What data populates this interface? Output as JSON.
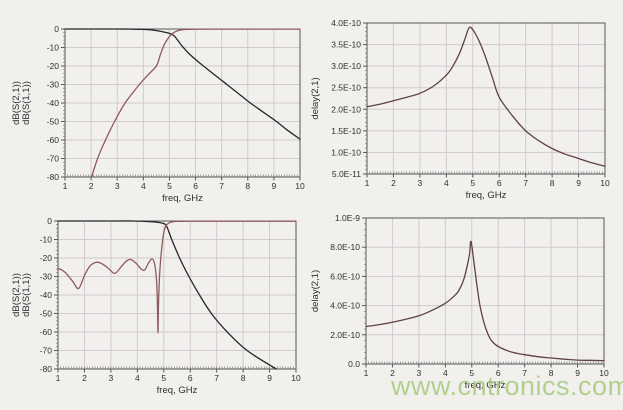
{
  "page": {
    "background": "#f2f0ec",
    "watermark": {
      "text": "www.cntronics.com",
      "color": "#a6cb7f"
    }
  },
  "chart_data": [
    {
      "type": "line",
      "position": "top-left",
      "title": "",
      "xlabel": "freq, GHz",
      "ylabel": [
        {
          "text": "dB(S(2,1))",
          "color": "#3c3c8a"
        },
        {
          "text": "dB(S(1,1))",
          "color": "#a8484a"
        }
      ],
      "xlim": [
        1,
        10
      ],
      "ylim": [
        -80,
        0
      ],
      "grid": true,
      "xtick_values": [
        1,
        2,
        3,
        4,
        5,
        6,
        7,
        8,
        9,
        10
      ],
      "xtick_labels": [
        "1",
        "2",
        "3",
        "4",
        "5",
        "6",
        "7",
        "8",
        "9",
        "10"
      ],
      "ytick_values": [
        0,
        -10,
        -20,
        -30,
        -40,
        -50,
        -60,
        -70,
        -80
      ],
      "ytick_labels": [
        "0",
        "-10",
        "-20",
        "-30",
        "-40",
        "-50",
        "-60",
        "-70",
        "-80"
      ],
      "series": [
        {
          "name": "dB(S(2,1))",
          "color": "#26262e",
          "points": [
            [
              1,
              0
            ],
            [
              1.5,
              0
            ],
            [
              2,
              0
            ],
            [
              2.5,
              0
            ],
            [
              3,
              0
            ],
            [
              3.5,
              -0.05
            ],
            [
              4,
              -0.2
            ],
            [
              4.3,
              -0.5
            ],
            [
              4.6,
              -1.1
            ],
            [
              4.8,
              -1.7
            ],
            [
              5,
              -2.4
            ],
            [
              5.2,
              -4
            ],
            [
              5.5,
              -9.5
            ],
            [
              5.8,
              -14
            ],
            [
              6.3,
              -20
            ],
            [
              6.8,
              -25.5
            ],
            [
              7.2,
              -30
            ],
            [
              7.7,
              -35.5
            ],
            [
              8.1,
              -40
            ],
            [
              8.6,
              -45
            ],
            [
              9.1,
              -50
            ],
            [
              9.5,
              -54.5
            ],
            [
              10,
              -59.5
            ]
          ]
        },
        {
          "name": "dB(S(1,1))",
          "color": "#8e5a5e",
          "points": [
            [
              2.02,
              -80
            ],
            [
              2.25,
              -70
            ],
            [
              2.55,
              -60
            ],
            [
              2.9,
              -50
            ],
            [
              3.3,
              -40
            ],
            [
              3.85,
              -30
            ],
            [
              4.2,
              -24.5
            ],
            [
              4.5,
              -20
            ],
            [
              4.65,
              -14
            ],
            [
              4.8,
              -8.5
            ],
            [
              4.95,
              -5
            ],
            [
              5.05,
              -3.2
            ],
            [
              5.2,
              -1.6
            ],
            [
              5.4,
              -0.6
            ],
            [
              5.6,
              -0.25
            ],
            [
              6,
              -0.1
            ],
            [
              7,
              -0.08
            ],
            [
              8,
              -0.08
            ],
            [
              9,
              -0.08
            ],
            [
              10,
              -0.08
            ]
          ]
        }
      ]
    },
    {
      "type": "line",
      "position": "top-right",
      "title": "",
      "xlabel": "freq, GHz",
      "ylabel": [
        {
          "text": "delay(2,1)",
          "color": "#a8484a"
        }
      ],
      "xlim": [
        1,
        10
      ],
      "ylim": [
        5e-11,
        4e-10
      ],
      "grid": true,
      "xtick_values": [
        1,
        2,
        3,
        4,
        5,
        6,
        7,
        8,
        9,
        10
      ],
      "xtick_labels": [
        "1",
        "2",
        "3",
        "4",
        "5",
        "6",
        "7",
        "8",
        "9",
        "10"
      ],
      "ytick_values": [
        4e-10,
        3.5e-10,
        3e-10,
        2.5e-10,
        2e-10,
        1.5e-10,
        1e-10,
        5e-11
      ],
      "ytick_labels": [
        "4.0E-10",
        "3.5E-10",
        "3.0E-10",
        "2.5E-10",
        "2.0E-10",
        "1.5E-10",
        "1.0E-10",
        "5.0E-11"
      ],
      "series": [
        {
          "name": "delay(2,1)",
          "color": "#5f4148",
          "points": [
            [
              1,
              2.06e-10
            ],
            [
              1.5,
              2.12e-10
            ],
            [
              2,
              2.2e-10
            ],
            [
              2.5,
              2.28e-10
            ],
            [
              3,
              2.37e-10
            ],
            [
              3.5,
              2.53e-10
            ],
            [
              4,
              2.79e-10
            ],
            [
              4.25,
              3e-10
            ],
            [
              4.5,
              3.3e-10
            ],
            [
              4.7,
              3.62e-10
            ],
            [
              4.88,
              3.9e-10
            ],
            [
              5.1,
              3.75e-10
            ],
            [
              5.3,
              3.5e-10
            ],
            [
              5.5,
              3.18e-10
            ],
            [
              5.75,
              2.72e-10
            ],
            [
              6,
              2.28e-10
            ],
            [
              6.5,
              1.85e-10
            ],
            [
              7,
              1.5e-10
            ],
            [
              7.5,
              1.27e-10
            ],
            [
              8,
              1.09e-10
            ],
            [
              8.5,
              9.6e-11
            ],
            [
              9,
              8.6e-11
            ],
            [
              9.5,
              7.6e-11
            ],
            [
              10,
              6.8e-11
            ]
          ]
        }
      ]
    },
    {
      "type": "line",
      "position": "bottom-left",
      "title": "",
      "xlabel": "freq, GHz",
      "ylabel": [
        {
          "text": "dB(S(2,1))",
          "color": "#3c3c8a"
        },
        {
          "text": "dB(S(1,1))",
          "color": "#a8484a"
        }
      ],
      "xlim": [
        1,
        10
      ],
      "ylim": [
        -80,
        0
      ],
      "grid": true,
      "xtick_values": [
        1,
        2,
        3,
        4,
        5,
        6,
        7,
        8,
        9,
        10
      ],
      "xtick_labels": [
        "1",
        "2",
        "3",
        "4",
        "5",
        "6",
        "7",
        "8",
        "9",
        "10"
      ],
      "ytick_values": [
        0,
        -10,
        -20,
        -30,
        -40,
        -50,
        -60,
        -70,
        -80
      ],
      "ytick_labels": [
        "0",
        "-10",
        "-20",
        "-30",
        "-40",
        "-50",
        "-60",
        "-70",
        "-80"
      ],
      "series": [
        {
          "name": "dB(S(2,1))",
          "color": "#26262e",
          "points": [
            [
              1,
              0
            ],
            [
              2,
              0
            ],
            [
              3,
              0
            ],
            [
              3.8,
              0
            ],
            [
              4.3,
              -0.2
            ],
            [
              4.7,
              -0.6
            ],
            [
              4.95,
              -1.2
            ],
            [
              5.1,
              -2.6
            ],
            [
              5.3,
              -10
            ],
            [
              5.6,
              -20
            ],
            [
              5.95,
              -30
            ],
            [
              6.35,
              -40
            ],
            [
              6.8,
              -50
            ],
            [
              7.4,
              -60
            ],
            [
              8.15,
              -70
            ],
            [
              9.25,
              -80
            ]
          ]
        },
        {
          "name": "dB(S(1,1))",
          "color": "#8e5a5e",
          "points": [
            [
              1,
              -25.5
            ],
            [
              1.25,
              -27.5
            ],
            [
              1.55,
              -32.5
            ],
            [
              1.78,
              -36.5
            ],
            [
              2,
              -29.5
            ],
            [
              2.2,
              -24.5
            ],
            [
              2.45,
              -22.3
            ],
            [
              2.65,
              -23
            ],
            [
              2.9,
              -25.5
            ],
            [
              3.15,
              -28.3
            ],
            [
              3.4,
              -24.5
            ],
            [
              3.6,
              -21.5
            ],
            [
              3.75,
              -20.8
            ],
            [
              3.95,
              -22.8
            ],
            [
              4.15,
              -26
            ],
            [
              4.28,
              -26.5
            ],
            [
              4.42,
              -22.8
            ],
            [
              4.55,
              -20.5
            ],
            [
              4.65,
              -23
            ],
            [
              4.72,
              -31
            ],
            [
              4.76,
              -45
            ],
            [
              4.78,
              -60.5
            ],
            [
              4.8,
              -45
            ],
            [
              4.84,
              -30
            ],
            [
              4.9,
              -18
            ],
            [
              4.98,
              -8
            ],
            [
              5.06,
              -3.2
            ],
            [
              5.18,
              -1.2
            ],
            [
              5.35,
              -0.4
            ],
            [
              5.6,
              -0.15
            ],
            [
              6,
              -0.1
            ],
            [
              7,
              -0.1
            ],
            [
              8,
              -0.1
            ],
            [
              9,
              -0.1
            ],
            [
              10,
              -0.1
            ]
          ]
        }
      ]
    },
    {
      "type": "line",
      "position": "bottom-right",
      "title": "",
      "xlabel": "freq, GHz",
      "ylabel": [
        {
          "text": "delay(2,1)",
          "color": "#a8484a"
        }
      ],
      "xlim": [
        1,
        10
      ],
      "ylim": [
        0,
        1e-09
      ],
      "grid": true,
      "xtick_values": [
        1,
        2,
        3,
        4,
        5,
        6,
        7,
        8,
        9,
        10
      ],
      "xtick_labels": [
        "1",
        "2",
        "3",
        "4",
        "5",
        "6",
        "7",
        "8",
        "9",
        "10"
      ],
      "ytick_values": [
        1e-09,
        8e-10,
        6e-10,
        4e-10,
        2e-10,
        0
      ],
      "ytick_labels": [
        "1.0E-9",
        "8.0E-10",
        "6.0E-10",
        "4.0E-10",
        "2.0E-10",
        "0.0"
      ],
      "series": [
        {
          "name": "delay(2,1)",
          "color": "#5f4148",
          "points": [
            [
              1,
              2.57e-10
            ],
            [
              1.5,
              2.7e-10
            ],
            [
              2,
              2.86e-10
            ],
            [
              2.5,
              3.06e-10
            ],
            [
              3,
              3.3e-10
            ],
            [
              3.5,
              3.68e-10
            ],
            [
              4,
              4.16e-10
            ],
            [
              4.3,
              4.6e-10
            ],
            [
              4.5,
              5e-10
            ],
            [
              4.7,
              5.8e-10
            ],
            [
              4.85,
              6.9e-10
            ],
            [
              4.92,
              7.6e-10
            ],
            [
              4.97,
              8.4e-10
            ],
            [
              5.08,
              7e-10
            ],
            [
              5.18,
              5.6e-10
            ],
            [
              5.3,
              4.1e-10
            ],
            [
              5.45,
              2.9e-10
            ],
            [
              5.6,
              2.1e-10
            ],
            [
              5.75,
              1.59e-10
            ],
            [
              6,
              1.2e-10
            ],
            [
              6.5,
              8.2e-11
            ],
            [
              7,
              6.4e-11
            ],
            [
              7.5,
              5e-11
            ],
            [
              8,
              4.1e-11
            ],
            [
              8.5,
              3.3e-11
            ],
            [
              9,
              2.7e-11
            ],
            [
              9.5,
              2.5e-11
            ],
            [
              10,
              2.3e-11
            ]
          ]
        }
      ]
    }
  ]
}
